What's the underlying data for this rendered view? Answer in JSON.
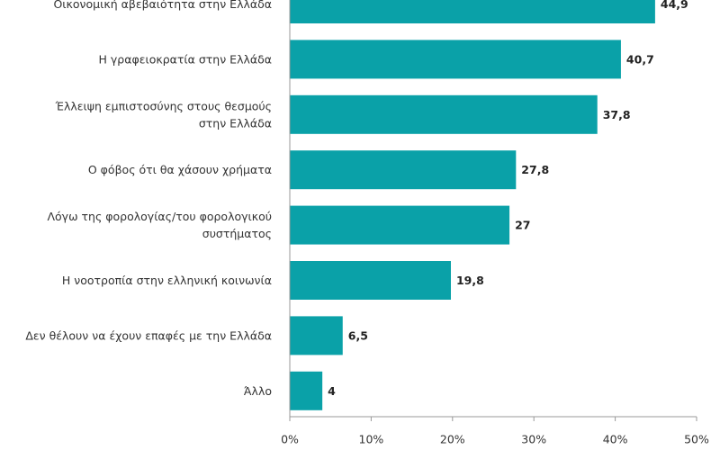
{
  "chart_data": {
    "type": "bar",
    "orientation": "horizontal",
    "categories": [
      [
        "Οικονομική αβεβαιότητα στην Ελλάδα"
      ],
      [
        "Η γραφειοκρατία στην Ελλάδα"
      ],
      [
        "Έλλειψη εμπιστοσύνης στους θεσμούς",
        "στην Ελλάδα"
      ],
      [
        "Ο φόβος ότι θα χάσουν χρήματα"
      ],
      [
        "Λόγω της φορολογίας/του φορολογικού",
        "συστήματος"
      ],
      [
        "Η νοοτροπία στην ελληνική κοινωνία"
      ],
      [
        "Δεν θέλουν να έχουν επαφές με την Ελλάδα"
      ],
      [
        "Άλλο"
      ]
    ],
    "values": [
      44.9,
      40.7,
      37.8,
      27.8,
      27,
      19.8,
      6.5,
      4
    ],
    "value_labels": [
      "44,9",
      "40,7",
      "37,8",
      "27,8",
      "27",
      "19,8",
      "6,5",
      "4"
    ],
    "x_ticks": [
      "0%",
      "10%",
      "20%",
      "30%",
      "40%",
      "50%"
    ],
    "xlim": [
      0,
      50
    ],
    "grid": false,
    "bar_color": "#0aa1a8"
  }
}
